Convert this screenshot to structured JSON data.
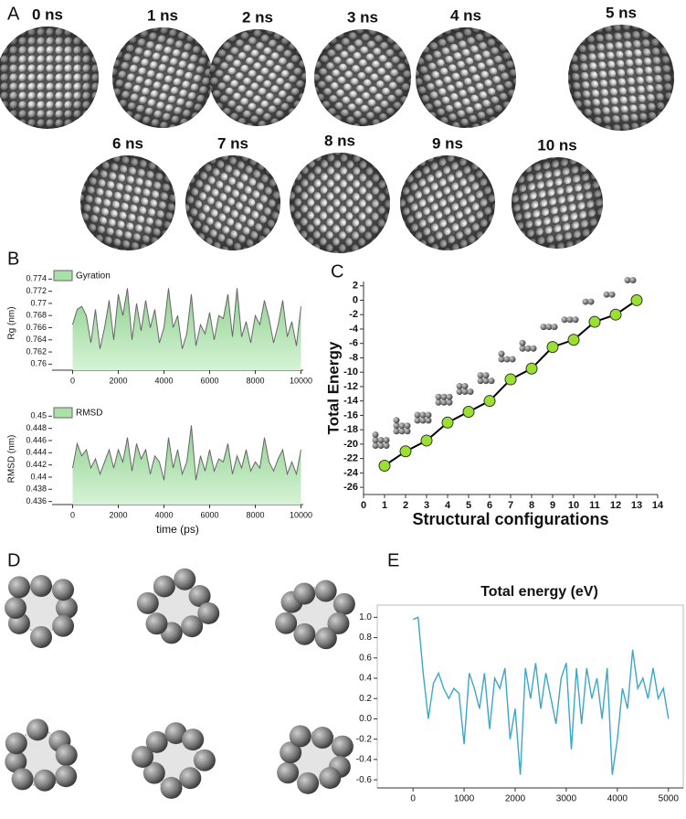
{
  "panel_letters": [
    "A",
    "B",
    "C",
    "D",
    "E"
  ],
  "snapshot_labels": [
    "0 ns",
    "1 ns",
    "2 ns",
    "3 ns",
    "4 ns",
    "5 ns",
    "6 ns",
    "7 ns",
    "8 ns",
    "9 ns",
    "10 ns"
  ],
  "chart_data": [
    {
      "type": "area",
      "ylabel": "Rg (nm)",
      "line_color": "#666666",
      "x": [
        0,
        200,
        400,
        600,
        800,
        1000,
        1200,
        1400,
        1600,
        1800,
        2000,
        2200,
        2400,
        2600,
        2800,
        3000,
        3200,
        3400,
        3600,
        3800,
        4000,
        4200,
        4400,
        4600,
        4800,
        5000,
        5200,
        5400,
        5600,
        5800,
        6000,
        6200,
        6400,
        6600,
        6800,
        7000,
        7200,
        7400,
        7600,
        7800,
        8000,
        8200,
        8400,
        8600,
        8800,
        9000,
        9200,
        9400,
        9600,
        9800,
        10000
      ],
      "series": [
        {
          "name": "Gyration",
          "color": "#a8e2a8",
          "values": [
            0.7665,
            0.769,
            0.7695,
            0.768,
            0.7635,
            0.769,
            0.7625,
            0.766,
            0.7705,
            0.764,
            0.7715,
            0.768,
            0.7725,
            0.764,
            0.77,
            0.7655,
            0.7705,
            0.766,
            0.769,
            0.7635,
            0.766,
            0.7725,
            0.766,
            0.768,
            0.7625,
            0.765,
            0.7715,
            0.763,
            0.7665,
            0.765,
            0.7685,
            0.764,
            0.768,
            0.7675,
            0.7715,
            0.7645,
            0.7725,
            0.7645,
            0.767,
            0.7635,
            0.768,
            0.7665,
            0.7705,
            0.7675,
            0.7635,
            0.7665,
            0.7705,
            0.7645,
            0.767,
            0.763,
            0.7695
          ]
        }
      ],
      "xlim": [
        -900,
        10100
      ],
      "ylim": [
        0.759,
        0.7745
      ],
      "xticks": [
        0,
        2000,
        4000,
        6000,
        8000,
        10000
      ],
      "yticks": [
        0.76,
        0.762,
        0.764,
        0.766,
        0.768,
        0.77,
        0.772,
        0.774
      ]
    },
    {
      "type": "area",
      "ylabel": "RMSD (nm)",
      "xlabel": "time (ps)",
      "line_color": "#666666",
      "x": [
        0,
        200,
        400,
        600,
        800,
        1000,
        1200,
        1400,
        1600,
        1800,
        2000,
        2200,
        2400,
        2600,
        2800,
        3000,
        3200,
        3400,
        3600,
        3800,
        4000,
        4200,
        4400,
        4600,
        4800,
        5000,
        5200,
        5400,
        5600,
        5800,
        6000,
        6200,
        6400,
        6600,
        6800,
        7000,
        7200,
        7400,
        7600,
        7800,
        8000,
        8200,
        8400,
        8600,
        8800,
        9000,
        9200,
        9400,
        9600,
        9800,
        10000
      ],
      "series": [
        {
          "name": "RMSD",
          "color": "#a8e2a8",
          "values": [
            0.4415,
            0.4455,
            0.4435,
            0.4445,
            0.4415,
            0.443,
            0.4405,
            0.4425,
            0.4445,
            0.4415,
            0.4445,
            0.4425,
            0.4465,
            0.441,
            0.4455,
            0.443,
            0.4445,
            0.4405,
            0.4435,
            0.4425,
            0.4395,
            0.4465,
            0.4415,
            0.4445,
            0.4405,
            0.4425,
            0.4485,
            0.4395,
            0.4435,
            0.441,
            0.4445,
            0.441,
            0.443,
            0.4425,
            0.4455,
            0.4405,
            0.4435,
            0.4415,
            0.4445,
            0.441,
            0.4425,
            0.4415,
            0.4465,
            0.4425,
            0.441,
            0.443,
            0.4445,
            0.4405,
            0.4425,
            0.4405,
            0.4445
          ]
        }
      ],
      "xlim": [
        -900,
        10100
      ],
      "ylim": [
        0.4355,
        0.4505
      ],
      "xticks": [
        0,
        2000,
        4000,
        6000,
        8000,
        10000
      ],
      "yticks": [
        0.436,
        0.438,
        0.44,
        0.442,
        0.444,
        0.446,
        0.448,
        0.45
      ]
    },
    {
      "type": "line",
      "markers": true,
      "ylabel": "Total Energy",
      "xlabel": "Structural configurations",
      "line_color": "#000000",
      "x": [
        1,
        2,
        3,
        4,
        5,
        6,
        7,
        8,
        9,
        10,
        11,
        12,
        13
      ],
      "series": [
        {
          "color": "#9ae030",
          "values": [
            -23,
            -21,
            -19.5,
            -17,
            -15.5,
            -14,
            -11,
            -9.5,
            -6.5,
            -5.5,
            -3,
            -2,
            0
          ]
        }
      ],
      "xlim": [
        0,
        14
      ],
      "ylim": [
        -27,
        2.6
      ],
      "xticks": [
        0,
        1,
        2,
        3,
        4,
        5,
        6,
        7,
        8,
        9,
        10,
        11,
        12,
        13,
        14
      ],
      "yticks": [
        2,
        0,
        -2,
        -4,
        -6,
        -8,
        -10,
        -12,
        -14,
        -16,
        -18,
        -20,
        -22,
        -24,
        -26
      ]
    },
    {
      "type": "line",
      "title": "Total energy (eV)",
      "frame": true,
      "x": [
        0,
        100,
        200,
        300,
        400,
        500,
        600,
        700,
        800,
        900,
        1000,
        1100,
        1200,
        1300,
        1400,
        1500,
        1600,
        1700,
        1800,
        1900,
        2000,
        2100,
        2200,
        2300,
        2400,
        2500,
        2600,
        2700,
        2800,
        2900,
        3000,
        3100,
        3200,
        3300,
        3400,
        3500,
        3600,
        3700,
        3800,
        3900,
        4000,
        4100,
        4200,
        4300,
        4400,
        4500,
        4600,
        4700,
        4800,
        4900,
        5000
      ],
      "series": [
        {
          "color": "#3ba7c9",
          "values": [
            0.98,
            1.0,
            0.45,
            0.0,
            0.35,
            0.45,
            0.3,
            0.2,
            0.3,
            0.25,
            -0.25,
            0.45,
            0.3,
            0.1,
            0.45,
            -0.1,
            0.4,
            0.3,
            0.5,
            -0.2,
            0.1,
            -0.55,
            0.5,
            0.2,
            0.55,
            0.1,
            0.45,
            0.2,
            -0.05,
            0.4,
            0.55,
            -0.3,
            0.5,
            -0.05,
            0.5,
            0.2,
            0.4,
            0.0,
            0.5,
            -0.55,
            -0.2,
            0.3,
            0.1,
            0.68,
            0.3,
            0.4,
            0.2,
            0.5,
            0.2,
            0.3,
            0.0
          ]
        }
      ],
      "xlim": [
        -700,
        5290
      ],
      "ylim": [
        -0.68,
        1.12
      ],
      "xticks": [
        0,
        1000,
        2000,
        3000,
        4000,
        5000
      ],
      "yticks": [
        {
          "value": 1,
          "label": "1.0"
        },
        0.8,
        0.6,
        0.4,
        0.2,
        {
          "value": 0,
          "label": "0.0"
        },
        -0.2,
        -0.4,
        -0.6
      ]
    }
  ]
}
